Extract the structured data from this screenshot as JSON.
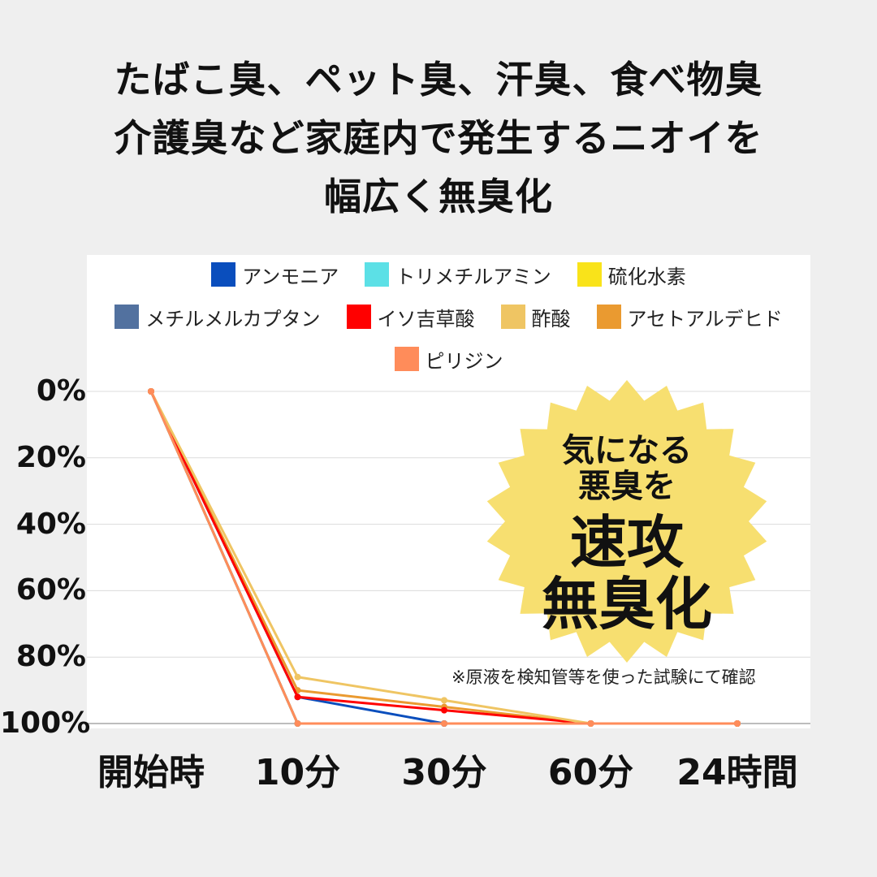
{
  "headline": {
    "line1": "たばこ臭、ペット臭、汗臭、食べ物臭",
    "line2": "介護臭など家庭内で発生するニオイを",
    "line3": "幅広く無臭化"
  },
  "badge": {
    "line1": "気になる",
    "line2": "悪臭を",
    "line3": "速攻",
    "line4": "無臭化",
    "color": "#f7df70"
  },
  "note": "※原液を検知管等を使った試験にて確認",
  "chart_data": {
    "type": "line",
    "categories": [
      "開始時",
      "10分",
      "30分",
      "60分",
      "24時間"
    ],
    "y_tick_labels": [
      "0%",
      "20%",
      "40%",
      "60%",
      "80%",
      "100%"
    ],
    "ylim": [
      0,
      100
    ],
    "y_inverted": true,
    "grid": true,
    "legend_position": "top",
    "series": [
      {
        "name": "アンモニア",
        "color": "#0a4ebd",
        "values": [
          0,
          92,
          100,
          100,
          100
        ]
      },
      {
        "name": "トリメチルアミン",
        "color": "#5ce0e6",
        "values": [
          0,
          100,
          100,
          100,
          100
        ]
      },
      {
        "name": "硫化水素",
        "color": "#f9e31a",
        "values": [
          0,
          100,
          100,
          100,
          100
        ]
      },
      {
        "name": "メチルメルカプタン",
        "color": "#52719f",
        "values": [
          0,
          100,
          100,
          100,
          100
        ]
      },
      {
        "name": "イソ吉草酸",
        "color": "#ff0000",
        "values": [
          0,
          92,
          96,
          100,
          100
        ]
      },
      {
        "name": "酢酸",
        "color": "#efc563",
        "values": [
          0,
          86,
          93,
          100,
          100
        ]
      },
      {
        "name": "アセトアルデヒド",
        "color": "#ea9a30",
        "values": [
          0,
          90,
          95,
          100,
          100
        ]
      },
      {
        "name": "ピリジン",
        "color": "#ff8c5a",
        "values": [
          0,
          100,
          100,
          100,
          100
        ]
      }
    ]
  }
}
